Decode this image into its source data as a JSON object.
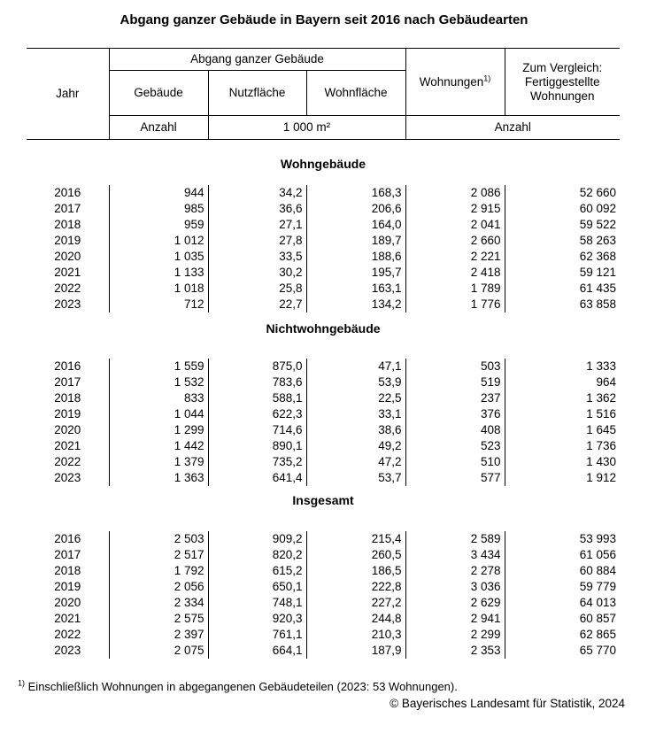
{
  "title": "Abgang ganzer Gebäude in Bayern seit 2016 nach Gebäudearten",
  "table": {
    "header": {
      "jahr": "Jahr",
      "group": "Abgang ganzer Gebäude",
      "sub": [
        "Gebäude",
        "Nutzfläche",
        "Wohnfläche"
      ],
      "wohnungen_label": "Wohnungen",
      "wohnungen_sup": "1)",
      "vergleich": "Zum Vergleich: Fertiggestellte Wohnungen",
      "units": [
        "Anzahl",
        "1 000 m²",
        "Anzahl"
      ]
    },
    "sections": [
      {
        "label": "Wohngebäude",
        "rows": [
          {
            "jahr": "2016",
            "values": [
              "944",
              "34,2",
              "168,3",
              "2 086",
              "52 660"
            ]
          },
          {
            "jahr": "2017",
            "values": [
              "985",
              "36,6",
              "206,6",
              "2 915",
              "60 092"
            ]
          },
          {
            "jahr": "2018",
            "values": [
              "959",
              "27,1",
              "164,0",
              "2 041",
              "59 522"
            ]
          },
          {
            "jahr": "2019",
            "values": [
              "1 012",
              "27,8",
              "189,7",
              "2 660",
              "58 263"
            ]
          },
          {
            "jahr": "2020",
            "values": [
              "1 035",
              "33,5",
              "188,6",
              "2 221",
              "62 368"
            ]
          },
          {
            "jahr": "2021",
            "values": [
              "1 133",
              "30,2",
              "195,7",
              "2 418",
              "59 121"
            ]
          },
          {
            "jahr": "2022",
            "values": [
              "1 018",
              "25,8",
              "163,1",
              "1 789",
              "61 435"
            ]
          },
          {
            "jahr": "2023",
            "values": [
              "712",
              "22,7",
              "134,2",
              "1 776",
              "63 858"
            ]
          }
        ]
      },
      {
        "label": "Nichtwohngebäude",
        "rows": [
          {
            "jahr": "2016",
            "values": [
              "1 559",
              "875,0",
              "47,1",
              "503",
              "1 333"
            ]
          },
          {
            "jahr": "2017",
            "values": [
              "1 532",
              "783,6",
              "53,9",
              "519",
              "964"
            ]
          },
          {
            "jahr": "2018",
            "values": [
              "833",
              "588,1",
              "22,5",
              "237",
              "1 362"
            ]
          },
          {
            "jahr": "2019",
            "values": [
              "1 044",
              "622,3",
              "33,1",
              "376",
              "1 516"
            ]
          },
          {
            "jahr": "2020",
            "values": [
              "1 299",
              "714,6",
              "38,6",
              "408",
              "1 645"
            ]
          },
          {
            "jahr": "2021",
            "values": [
              "1 442",
              "890,1",
              "49,2",
              "523",
              "1 736"
            ]
          },
          {
            "jahr": "2022",
            "values": [
              "1 379",
              "735,2",
              "47,2",
              "510",
              "1 430"
            ]
          },
          {
            "jahr": "2023",
            "values": [
              "1 363",
              "641,4",
              "53,7",
              "577",
              "1 912"
            ]
          }
        ]
      },
      {
        "label": "Insgesamt",
        "rows": [
          {
            "jahr": "2016",
            "values": [
              "2 503",
              "909,2",
              "215,4",
              "2 589",
              "53 993"
            ]
          },
          {
            "jahr": "2017",
            "values": [
              "2 517",
              "820,2",
              "260,5",
              "3 434",
              "61 056"
            ]
          },
          {
            "jahr": "2018",
            "values": [
              "1 792",
              "615,2",
              "186,5",
              "2 278",
              "60 884"
            ]
          },
          {
            "jahr": "2019",
            "values": [
              "2 056",
              "650,1",
              "222,8",
              "3 036",
              "59 779"
            ]
          },
          {
            "jahr": "2020",
            "values": [
              "2 334",
              "748,1",
              "227,2",
              "2 629",
              "64 013"
            ]
          },
          {
            "jahr": "2021",
            "values": [
              "2 575",
              "920,3",
              "244,8",
              "2 941",
              "60 857"
            ]
          },
          {
            "jahr": "2022",
            "values": [
              "2 397",
              "761,1",
              "210,3",
              "2 299",
              "62 865"
            ]
          },
          {
            "jahr": "2023",
            "values": [
              "2 075",
              "664,1",
              "187,9",
              "2 353",
              "65 770"
            ]
          }
        ]
      }
    ]
  },
  "footnote": {
    "sup": "1)",
    "text": "Einschließlich Wohnungen in abgegangenen Gebäudeteilen (2023: 53 Wohnungen)."
  },
  "copyright": "© Bayerisches Landesamt für Statistik, 2024"
}
